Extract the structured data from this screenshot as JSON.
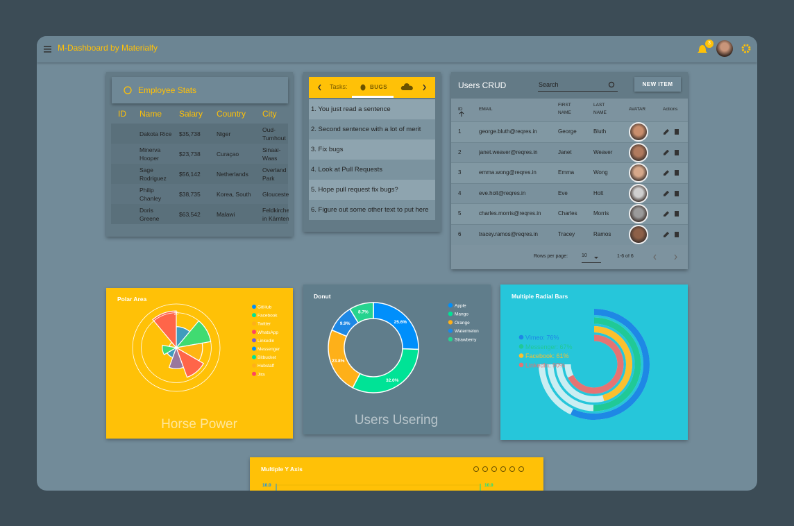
{
  "header": {
    "title": "M-Dashboard by Materialfy",
    "badge": "3"
  },
  "employee_stats": {
    "title": "Employee Stats",
    "columns": [
      "ID",
      "Name",
      "Salary",
      "Country",
      "City"
    ],
    "rows": [
      [
        "Dakota Rice",
        "$35,738",
        "Niger",
        "Oud-Turnhout"
      ],
      [
        "Minerva Hooper",
        "$23,738",
        "Curaçao",
        "Sinaai-Waas"
      ],
      [
        "Sage Rodriguez",
        "$56,142",
        "Netherlands",
        "Overland Park"
      ],
      [
        "Philip Chanley",
        "$38,735",
        "Korea, South",
        "Gloucester"
      ],
      [
        "Doris Greene",
        "$63,542",
        "Malawi",
        "Feldkirchen in Kärnten"
      ]
    ]
  },
  "tasks": {
    "label": "Tasks:",
    "tab": "BUGS",
    "items": [
      "1. You just read a sentence",
      "2. Second sentence with a lot of merit",
      "3. Fix bugs",
      "4. Look at Pull Requests",
      "5. Hope pull request fix bugs?",
      "6. Figure out some other text to put here"
    ]
  },
  "users": {
    "title": "Users CRUD",
    "search": "Search",
    "button": "NEW ITEM",
    "columns": [
      "ID",
      "EMAIL",
      "FIRST NAME",
      "LAST NAME",
      "AVATAR",
      "Actions"
    ],
    "rows": [
      [
        1,
        "george.bluth@reqres.in",
        "George",
        "Bluth"
      ],
      [
        2,
        "janet.weaver@reqres.in",
        "Janet",
        "Weaver"
      ],
      [
        3,
        "emma.wong@reqres.in",
        "Emma",
        "Wong"
      ],
      [
        4,
        "eve.holt@reqres.in",
        "Eve",
        "Holt"
      ],
      [
        5,
        "charles.morris@reqres.in",
        "Charles",
        "Morris"
      ],
      [
        6,
        "tracey.ramos@reqres.in",
        "Tracey",
        "Ramos"
      ]
    ],
    "rows_per_page_label": "Rows per page:",
    "rows_per_page": 10,
    "range": "1-6 of 6"
  },
  "polar_area": {
    "type": "polarArea",
    "title": "Polar Area",
    "labels": [
      "GitHub",
      "Facebook",
      "Twitter",
      "WhatsApp",
      "Linkedin",
      "Messenger",
      "Bitbucket",
      "Hubstaff",
      "Jira"
    ],
    "values": [
      12,
      20,
      15,
      18,
      12,
      6,
      8,
      4,
      21
    ],
    "colors": [
      "#008ffb",
      "#00e396",
      "#feb019",
      "#ff4560",
      "#775dd0",
      "#008ffb",
      "#00e396",
      "#feb019",
      "#ff4560"
    ],
    "rlim": [
      0,
      25
    ],
    "rticks": [
      20
    ],
    "footer": "Horse Power"
  },
  "donut": {
    "type": "donut",
    "title": "Donut",
    "labels": [
      "Apple",
      "Mango",
      "Orange",
      "Watermelon",
      "Strawberry"
    ],
    "values": [
      25.6,
      32.0,
      23.8,
      9.9,
      8.7
    ],
    "value_labels": [
      "25.6%",
      "32.0%",
      "23.8%",
      "9.9%",
      "8.7%"
    ],
    "colors": [
      "#008ffb",
      "#00e396",
      "#feb019",
      "#1e88e5",
      "#26d38f"
    ],
    "footer": "Users Usering"
  },
  "radial_bars": {
    "type": "radialBar",
    "title": "Multiple Radial Bars",
    "labels": [
      "Vimeo",
      "Messenger",
      "Facebook",
      "LinkedIn"
    ],
    "values": [
      76,
      67,
      61,
      90
    ],
    "value_labels": [
      "Vimeo: 76%",
      "Messenger: 67%",
      "Facebook: 61%",
      "LinkedIn: 90%"
    ],
    "colors": [
      "#1e88e5",
      "#20c997",
      "#fbc02d",
      "#e57373"
    ]
  },
  "multiple_y_axis": {
    "type": "line",
    "title": "Multiple Y Axis",
    "yticks": [
      {
        "value": 10,
        "label": "10.0"
      }
    ],
    "y2ticks": [
      {
        "value": 10,
        "label": "10.0"
      }
    ]
  }
}
